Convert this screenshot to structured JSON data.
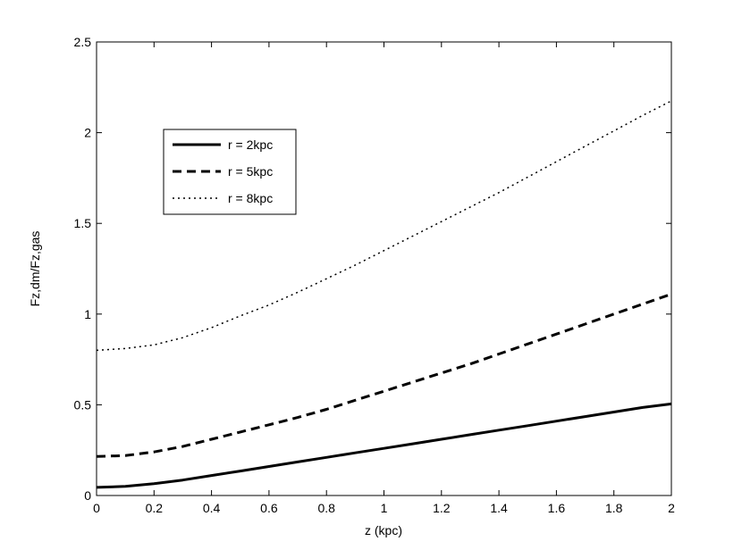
{
  "chart_data": {
    "type": "line",
    "title": "",
    "xlabel": "z (kpc)",
    "ylabel": "Fz,dm/Fz,gas",
    "xlim": [
      0,
      2
    ],
    "ylim": [
      0,
      2.5
    ],
    "xticks": [
      "0",
      "0.2",
      "0.4",
      "0.6",
      "0.8",
      "1",
      "1.2",
      "1.4",
      "1.6",
      "1.8",
      "2"
    ],
    "yticks": [
      "0",
      "0.5",
      "1",
      "1.5",
      "2",
      "2.5"
    ],
    "grid": false,
    "legend_position": "upper-left",
    "x": [
      0,
      0.1,
      0.2,
      0.3,
      0.4,
      0.5,
      0.6,
      0.7,
      0.8,
      0.9,
      1.0,
      1.1,
      1.2,
      1.3,
      1.4,
      1.5,
      1.6,
      1.7,
      1.8,
      1.9,
      2.0
    ],
    "series": [
      {
        "name": "r = 2kpc",
        "style": "solid",
        "values": [
          0.045,
          0.05,
          0.065,
          0.085,
          0.11,
          0.135,
          0.16,
          0.185,
          0.21,
          0.235,
          0.26,
          0.285,
          0.31,
          0.335,
          0.36,
          0.385,
          0.41,
          0.435,
          0.46,
          0.485,
          0.505
        ]
      },
      {
        "name": "r = 5kpc",
        "style": "dashed",
        "values": [
          0.215,
          0.22,
          0.24,
          0.27,
          0.31,
          0.35,
          0.39,
          0.43,
          0.475,
          0.525,
          0.575,
          0.625,
          0.675,
          0.725,
          0.78,
          0.835,
          0.89,
          0.945,
          1.0,
          1.055,
          1.11
        ]
      },
      {
        "name": "r = 8kpc",
        "style": "dotted",
        "values": [
          0.8,
          0.81,
          0.83,
          0.87,
          0.925,
          0.99,
          1.05,
          1.12,
          1.195,
          1.27,
          1.35,
          1.43,
          1.51,
          1.59,
          1.67,
          1.755,
          1.84,
          1.925,
          2.01,
          2.095,
          2.175
        ]
      }
    ]
  }
}
